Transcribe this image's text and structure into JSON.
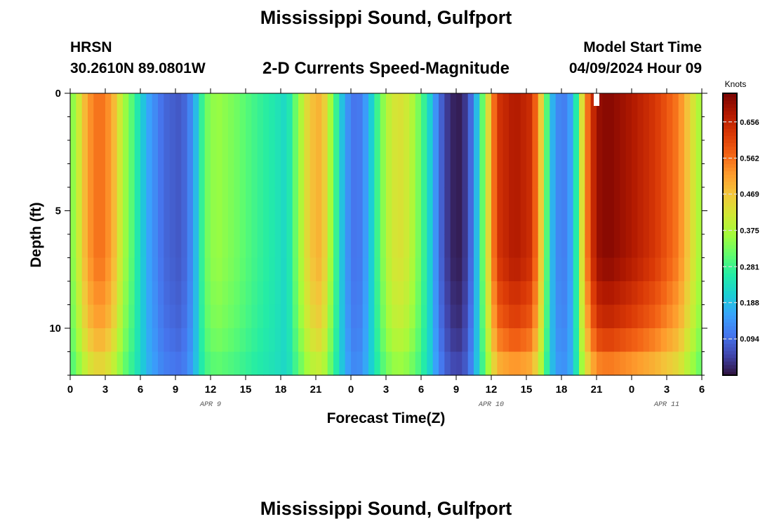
{
  "page": {
    "title": "Mississippi Sound, Gulfport",
    "station_id": "HRSN",
    "station_coords": "30.2610N  89.0801W",
    "plot_title": "2-D Currents Speed-Magnitude",
    "model_start_label": "Model Start Time",
    "model_start_value": "04/09/2024 Hour 09",
    "bottom_title": "Mississippi Sound, Gulfport"
  },
  "colors": {
    "colormap": [
      "#30123b",
      "#4145ab",
      "#4675ed",
      "#39a2fc",
      "#1bcfd4",
      "#24eca6",
      "#61fc6c",
      "#a4fc3b",
      "#d1e834",
      "#f3c63a",
      "#fe9b2d",
      "#f36315",
      "#d93806",
      "#b11901",
      "#7a0403"
    ],
    "marker": "#ffffff"
  },
  "chart_data": {
    "type": "heatmap",
    "xlabel": "Forecast Time(Z)",
    "ylabel": "Depth (ft)",
    "colorbar_unit": "Knots",
    "colorbar_range": [
      0.0,
      0.73
    ],
    "colorbar_ticks": [
      0.094,
      0.188,
      0.281,
      0.375,
      0.469,
      0.562,
      0.656
    ],
    "x_hours_range": [
      0,
      54
    ],
    "x_ticks": [
      {
        "h": 0,
        "label": "0"
      },
      {
        "h": 3,
        "label": "3"
      },
      {
        "h": 6,
        "label": "6"
      },
      {
        "h": 9,
        "label": "9"
      },
      {
        "h": 12,
        "label": "12"
      },
      {
        "h": 15,
        "label": "15"
      },
      {
        "h": 18,
        "label": "18"
      },
      {
        "h": 21,
        "label": "21"
      },
      {
        "h": 24,
        "label": "0"
      },
      {
        "h": 27,
        "label": "3"
      },
      {
        "h": 30,
        "label": "6"
      },
      {
        "h": 33,
        "label": "9"
      },
      {
        "h": 36,
        "label": "12"
      },
      {
        "h": 39,
        "label": "15"
      },
      {
        "h": 42,
        "label": "18"
      },
      {
        "h": 45,
        "label": "21"
      },
      {
        "h": 48,
        "label": "0"
      },
      {
        "h": 51,
        "label": "3"
      },
      {
        "h": 54,
        "label": "6"
      }
    ],
    "date_labels": [
      {
        "h": 12,
        "label": "APR 9"
      },
      {
        "h": 36,
        "label": "APR 10"
      },
      {
        "h": 51,
        "label": "APR 11"
      }
    ],
    "y_range": [
      0,
      12
    ],
    "y_ticks": [
      0,
      5,
      10
    ],
    "depth_layers": [
      0,
      1,
      2,
      3,
      4,
      5,
      6,
      7,
      8,
      9,
      10,
      11,
      12
    ],
    "surface_speed_profile": [
      {
        "h": 0,
        "v": 0.32
      },
      {
        "h": 0.5,
        "v": 0.38
      },
      {
        "h": 1.5,
        "v": 0.52
      },
      {
        "h": 2.5,
        "v": 0.57
      },
      {
        "h": 3.5,
        "v": 0.52
      },
      {
        "h": 4.5,
        "v": 0.38
      },
      {
        "h": 5.5,
        "v": 0.28
      },
      {
        "h": 6.5,
        "v": 0.17
      },
      {
        "h": 8,
        "v": 0.09
      },
      {
        "h": 9.5,
        "v": 0.07
      },
      {
        "h": 10.5,
        "v": 0.14
      },
      {
        "h": 11.5,
        "v": 0.32
      },
      {
        "h": 12.5,
        "v": 0.36
      },
      {
        "h": 14,
        "v": 0.33
      },
      {
        "h": 16,
        "v": 0.28
      },
      {
        "h": 17.5,
        "v": 0.25
      },
      {
        "h": 18.5,
        "v": 0.22
      },
      {
        "h": 19.5,
        "v": 0.35
      },
      {
        "h": 20.5,
        "v": 0.47
      },
      {
        "h": 21.5,
        "v": 0.5
      },
      {
        "h": 22.5,
        "v": 0.32
      },
      {
        "h": 23.5,
        "v": 0.15
      },
      {
        "h": 24.5,
        "v": 0.09
      },
      {
        "h": 25.5,
        "v": 0.17
      },
      {
        "h": 26.5,
        "v": 0.32
      },
      {
        "h": 27.5,
        "v": 0.42
      },
      {
        "h": 28.5,
        "v": 0.43
      },
      {
        "h": 29.5,
        "v": 0.36
      },
      {
        "h": 30.5,
        "v": 0.25
      },
      {
        "h": 31.5,
        "v": 0.1
      },
      {
        "h": 32.5,
        "v": 0.02
      },
      {
        "h": 33.5,
        "v": 0.01
      },
      {
        "h": 34.5,
        "v": 0.12
      },
      {
        "h": 35.5,
        "v": 0.38
      },
      {
        "h": 36.5,
        "v": 0.63
      },
      {
        "h": 38,
        "v": 0.68
      },
      {
        "h": 39.5,
        "v": 0.64
      },
      {
        "h": 40.5,
        "v": 0.4
      },
      {
        "h": 41,
        "v": 0.2
      },
      {
        "h": 42,
        "v": 0.1
      },
      {
        "h": 43,
        "v": 0.17
      },
      {
        "h": 44,
        "v": 0.52
      },
      {
        "h": 45,
        "v": 0.7
      },
      {
        "h": 46,
        "v": 0.72
      },
      {
        "h": 48,
        "v": 0.68
      },
      {
        "h": 50,
        "v": 0.63
      },
      {
        "h": 52,
        "v": 0.55
      },
      {
        "h": 53.5,
        "v": 0.4
      },
      {
        "h": 54,
        "v": 0.35
      }
    ],
    "model_start_marker_hour": 45
  }
}
